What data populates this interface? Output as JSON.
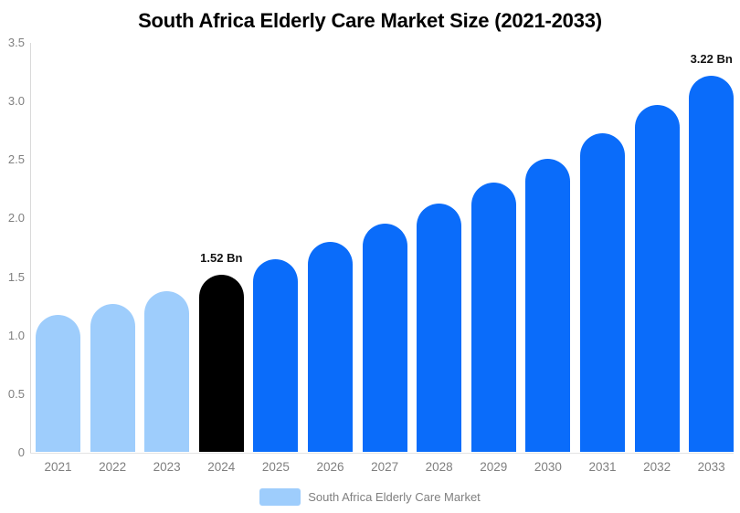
{
  "chart_data": {
    "type": "bar",
    "title": "South Africa Elderly Care Market Size (2021-2033)",
    "categories": [
      "2021",
      "2022",
      "2023",
      "2024",
      "2025",
      "2026",
      "2027",
      "2028",
      "2029",
      "2030",
      "2031",
      "2032",
      "2033"
    ],
    "values": [
      1.18,
      1.27,
      1.38,
      1.52,
      1.65,
      1.8,
      1.96,
      2.13,
      2.31,
      2.51,
      2.73,
      2.97,
      3.22
    ],
    "unit": "Bn",
    "xlabel": "",
    "ylabel": "",
    "ylim": [
      0,
      3.5
    ],
    "ytick_labels": [
      "0",
      "0.5",
      "1.0",
      "1.5",
      "2.0",
      "2.5",
      "3.0",
      "3.5"
    ],
    "grid": false,
    "legend_position": "bottom",
    "series_name": "South Africa Elderly Care Market",
    "bar_colors": [
      "#9ecdfc",
      "#9ecdfc",
      "#9ecdfc",
      "#000000",
      "#0a6cfa",
      "#0a6cfa",
      "#0a6cfa",
      "#0a6cfa",
      "#0a6cfa",
      "#0a6cfa",
      "#0a6cfa",
      "#0a6cfa",
      "#0a6cfa"
    ],
    "color_roles": {
      "historical": "#9ecdfc",
      "base_year": "#000000",
      "forecast": "#0a6cfa"
    },
    "annotations": [
      {
        "category": "2024",
        "text": "1.52 Bn"
      },
      {
        "category": "2033",
        "text": "3.22 Bn"
      }
    ],
    "axis_color": "#d9d9d9",
    "tick_label_color": "#7f7f7f"
  },
  "legend": {
    "label": "South Africa Elderly Care Market",
    "swatch_color": "#9ecdfc"
  }
}
